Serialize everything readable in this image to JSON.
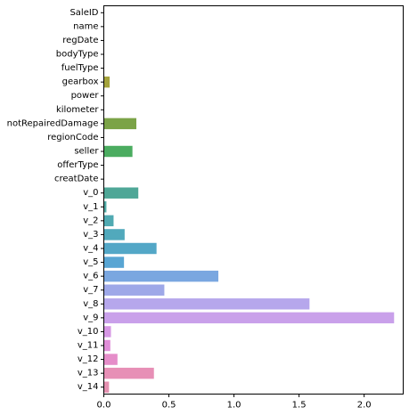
{
  "chart_data": {
    "type": "bar",
    "orientation": "horizontal",
    "title": "",
    "xlabel": "",
    "ylabel": "",
    "xlim": [
      0,
      2.3
    ],
    "xticks": [
      0.0,
      0.5,
      1.0,
      1.5,
      2.0
    ],
    "xtick_labels": [
      "0.0",
      "0.5",
      "1.0",
      "1.5",
      "2.0"
    ],
    "grid": false,
    "categories": [
      "SaleID",
      "name",
      "regDate",
      "bodyType",
      "fuelType",
      "gearbox",
      "power",
      "kilometer",
      "notRepairedDamage",
      "regionCode",
      "seller",
      "offerType",
      "creatDate",
      "v_0",
      "v_1",
      "v_2",
      "v_3",
      "v_4",
      "v_5",
      "v_6",
      "v_7",
      "v_8",
      "v_9",
      "v_10",
      "v_11",
      "v_12",
      "v_13",
      "v_14"
    ],
    "values": [
      0.0,
      0.0,
      0.0,
      0.0,
      0.0,
      0.045,
      0.0,
      0.0,
      0.25,
      0.0,
      0.22,
      0.0,
      0.0,
      0.265,
      0.02,
      0.075,
      0.16,
      0.405,
      0.155,
      0.88,
      0.465,
      1.58,
      2.23,
      0.055,
      0.05,
      0.105,
      0.385,
      0.04
    ],
    "colors": [
      "#e5899b",
      "#e48c83",
      "#d8934e",
      "#c59a3b",
      "#b3a03d",
      "#a4a33c",
      "#8fa83c",
      "#6aad3c",
      "#7ba347",
      "#4daf4e",
      "#4bac60",
      "#4ca87d",
      "#4da48c",
      "#4fa797",
      "#4fa9a4",
      "#50aab2",
      "#51a9bc",
      "#53a7c7",
      "#58a5d3",
      "#7aa7e0",
      "#9ea8e8",
      "#b6a7ec",
      "#c9a0ea",
      "#d697e4",
      "#e08ed8",
      "#e58dc9",
      "#e78fb6",
      "#e490b0"
    ]
  }
}
